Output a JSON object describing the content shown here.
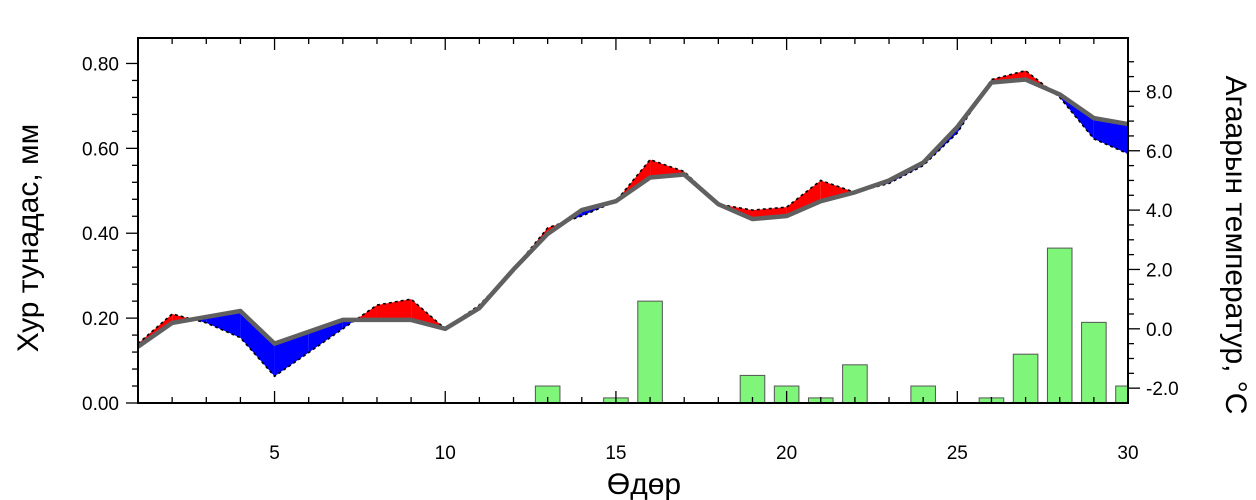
{
  "chart_data": {
    "type": "line+bar",
    "xlabel": "Өдөр",
    "ylabel_left": "Хур тунадас, мм",
    "ylabel_right": "Агаарын температур, °C",
    "x_ticks": [
      "5",
      "10",
      "15",
      "20",
      "25",
      "30"
    ],
    "y_left_ticks": [
      "0.00",
      "0.20",
      "0.40",
      "0.60",
      "0.80"
    ],
    "y_right_ticks": [
      "-2.0",
      "0.0",
      "2.0",
      "4.0",
      "6.0",
      "8.0"
    ],
    "xlim": [
      1,
      30
    ],
    "ylim_left": [
      0,
      0.86
    ],
    "ylim_right": [
      -2.5,
      9.8
    ],
    "grid": false,
    "days": [
      1,
      2,
      3,
      4,
      5,
      6,
      7,
      8,
      9,
      10,
      11,
      12,
      13,
      14,
      15,
      16,
      17,
      18,
      19,
      20,
      21,
      22,
      23,
      24,
      25,
      26,
      27,
      28,
      29,
      30
    ],
    "precipitation_mm": [
      0,
      0,
      0,
      0,
      0,
      0,
      0,
      0,
      0,
      0,
      0,
      0,
      0.04,
      0,
      0.012,
      0.24,
      0,
      0,
      0.065,
      0.04,
      0.012,
      0.09,
      0,
      0.04,
      0,
      0.012,
      0.115,
      0.365,
      0.19,
      0.04
    ],
    "series": [
      {
        "name": "temperature",
        "values": [
          -0.5,
          0.5,
          0.2,
          -0.3,
          -1.6,
          -0.8,
          0.0,
          0.8,
          1.0,
          0.0,
          0.8,
          2.0,
          3.4,
          3.8,
          4.3,
          5.7,
          5.3,
          4.2,
          4.0,
          4.1,
          5.0,
          4.6,
          4.9,
          5.5,
          6.6,
          8.4,
          8.7,
          7.8,
          6.4,
          5.9
        ]
      },
      {
        "name": "temperature_mean",
        "values": [
          -0.6,
          0.2,
          0.4,
          0.6,
          -0.5,
          -0.1,
          0.3,
          0.3,
          0.3,
          0.0,
          0.7,
          2.0,
          3.2,
          4.0,
          4.3,
          5.1,
          5.2,
          4.2,
          3.7,
          3.8,
          4.3,
          4.6,
          5.0,
          5.6,
          6.8,
          8.3,
          8.4,
          7.9,
          7.1,
          6.9
        ]
      }
    ],
    "colors": {
      "above": "#ff0000",
      "below": "#0000ff",
      "mean_line": "#606060",
      "bar_fill": "#7ff57a",
      "bar_stroke": "#555555"
    }
  }
}
